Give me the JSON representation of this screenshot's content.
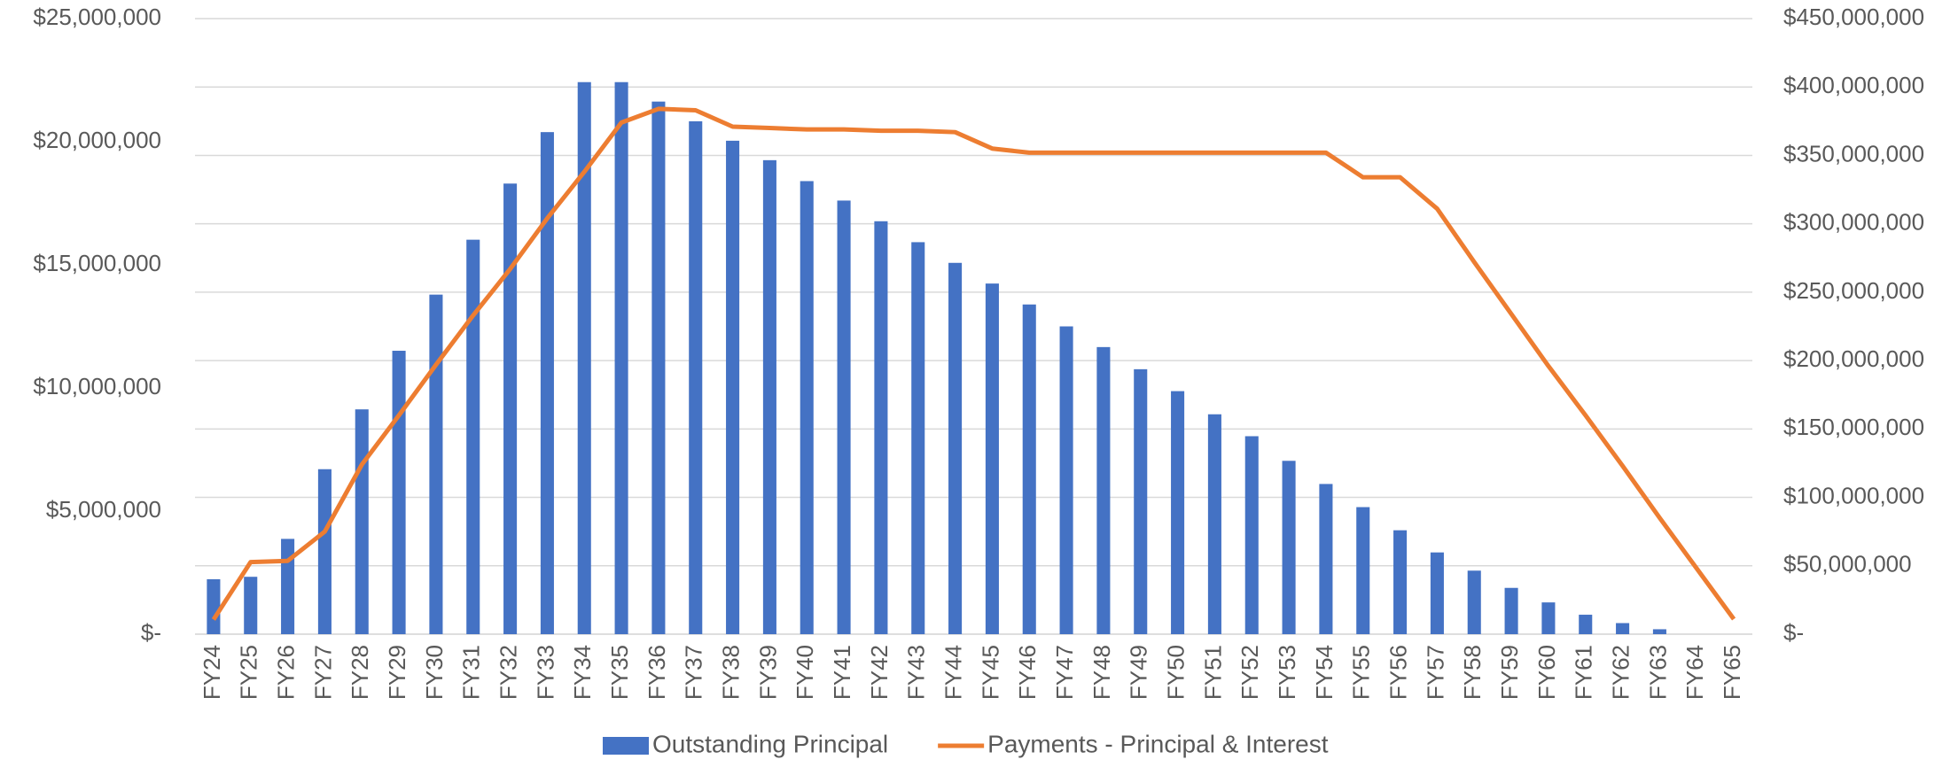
{
  "chart_data": {
    "type": "bar-line",
    "categories": [
      "FY24",
      "FY25",
      "FY26",
      "FY27",
      "FY28",
      "FY29",
      "FY30",
      "FY31",
      "FY32",
      "FY33",
      "FY34",
      "FY35",
      "FY36",
      "FY37",
      "FY38",
      "FY39",
      "FY40",
      "FY41",
      "FY42",
      "FY43",
      "FY44",
      "FY45",
      "FY46",
      "FY47",
      "FY48",
      "FY49",
      "FY50",
      "FY51",
      "FY52",
      "FY53",
      "FY54",
      "FY55",
      "FY56",
      "FY57",
      "FY58",
      "FY59",
      "FY60",
      "FY61",
      "FY62",
      "FY63",
      "FY64",
      "FY65"
    ],
    "series": [
      {
        "name": "Outstanding Principal",
        "type": "bar",
        "color": "#4472c4",
        "axis": "y",
        "values": [
          2230000,
          2330000,
          3870000,
          6700000,
          9130000,
          11510000,
          13790000,
          16020000,
          18300000,
          20390000,
          22420000,
          22420000,
          21630000,
          20830000,
          20040000,
          19250000,
          18400000,
          17610000,
          16770000,
          15920000,
          15080000,
          14240000,
          13390000,
          12500000,
          11660000,
          10760000,
          9870000,
          8930000,
          8040000,
          7040000,
          6100000,
          5160000,
          4220000,
          3320000,
          2580000,
          1880000,
          1290000,
          790000,
          450000,
          200000,
          0,
          0
        ]
      },
      {
        "name": "Payments - Principal & Interest",
        "type": "line",
        "color": "#ed7d31",
        "axis": "y2",
        "values": [
          10700000,
          52700000,
          53600000,
          75000000,
          124000000,
          160000000,
          197000000,
          233000000,
          267000000,
          304000000,
          338000000,
          374000000,
          384000000,
          383000000,
          371000000,
          370000000,
          369000000,
          369000000,
          368000000,
          368000000,
          367000000,
          355000000,
          352000000,
          352000000,
          352000000,
          352000000,
          352000000,
          352000000,
          352000000,
          352000000,
          352000000,
          334000000,
          334000000,
          311000000,
          272000000,
          234000000,
          196000000,
          160000000,
          123000000,
          85000000,
          48000000,
          11000000
        ]
      }
    ],
    "ylim": [
      0,
      25000000
    ],
    "yticks": [
      {
        "value": 0,
        "label": "$-"
      },
      {
        "value": 5000000,
        "label": "$5,000,000"
      },
      {
        "value": 10000000,
        "label": "$10,000,000"
      },
      {
        "value": 15000000,
        "label": "$15,000,000"
      },
      {
        "value": 20000000,
        "label": "$20,000,000"
      },
      {
        "value": 25000000,
        "label": "$25,000,000"
      }
    ],
    "y2lim": [
      0,
      450000000
    ],
    "y2ticks": [
      {
        "value": 0,
        "label": "$-"
      },
      {
        "value": 50000000,
        "label": "$50,000,000"
      },
      {
        "value": 100000000,
        "label": "$100,000,000"
      },
      {
        "value": 150000000,
        "label": "$150,000,000"
      },
      {
        "value": 200000000,
        "label": "$200,000,000"
      },
      {
        "value": 250000000,
        "label": "$250,000,000"
      },
      {
        "value": 300000000,
        "label": "$300,000,000"
      },
      {
        "value": 350000000,
        "label": "$350,000,000"
      },
      {
        "value": 400000000,
        "label": "$400,000,000"
      },
      {
        "value": 450000000,
        "label": "$450,000,000"
      }
    ],
    "grid": true,
    "legend": "bottom"
  }
}
